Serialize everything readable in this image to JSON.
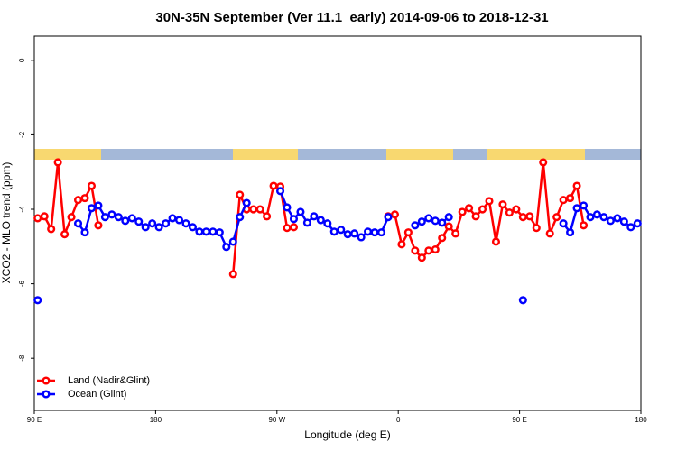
{
  "chart_data": {
    "type": "line",
    "title": "30N-35N September (Ver 11.1_early)   2014-09-06 to 2018-12-31",
    "xlabel": "Longitude (deg E)",
    "ylabel": "XCO2 - MLO trend (ppm)",
    "xlim": [
      90,
      540
    ],
    "ylim": [
      -9.4,
      0.65
    ],
    "xticks": [
      {
        "value": 90,
        "label": "90 E"
      },
      {
        "value": 180,
        "label": "180"
      },
      {
        "value": 270,
        "label": "90 W"
      },
      {
        "value": 360,
        "label": "0"
      },
      {
        "value": 450,
        "label": "90 E"
      },
      {
        "value": 540,
        "label": "180"
      }
    ],
    "yticks": [
      0,
      -2,
      -4,
      -6,
      -8
    ],
    "legend": "bottom-left",
    "series": [
      {
        "name": "Land (Nadir&Glint)",
        "color": "#ff0000",
        "x": [
          92.5,
          97.5,
          102.5,
          107.5,
          112.5,
          117.5,
          122.5,
          127.5,
          132.5,
          137.5,
          142.5,
          237.5,
          242.5,
          247.5,
          252.5,
          257.5,
          262.5,
          267.5,
          272.5,
          277.5,
          282.5,
          287.5,
          352.5,
          357.5,
          362.5,
          367.5,
          372.5,
          377.5,
          382.5,
          387.5,
          392.5,
          397.5,
          402.5,
          407.5,
          412.5,
          417.5,
          422.5,
          427.5,
          432.5,
          437.5,
          442.5,
          447.5,
          452.5,
          457.5,
          462.5,
          467.5,
          472.5,
          477.5,
          482.5,
          487.5,
          492.5,
          497.5
        ],
        "values": [
          -4.24,
          -4.19,
          -4.53,
          -2.74,
          -4.67,
          -4.21,
          -3.75,
          -3.7,
          -3.37,
          -4.43,
          null,
          -5.74,
          -3.61,
          -4.0,
          -4.0,
          -4.0,
          -4.19,
          -3.37,
          -3.39,
          -4.5,
          -4.48,
          null,
          -4.19,
          -4.14,
          -4.94,
          -4.62,
          -5.11,
          -5.3,
          -5.11,
          -5.08,
          -4.77,
          -4.46,
          -4.65,
          -4.07,
          -3.97,
          -4.19,
          -4.0,
          -3.78,
          -4.87,
          -3.87,
          -4.09,
          -4.0,
          -4.21,
          -4.19,
          -4.5,
          -2.74,
          -4.65,
          -4.21,
          -3.75,
          -3.7,
          -3.37,
          -4.43
        ]
      },
      {
        "name": "Ocean (Glint)",
        "color": "#0000ff",
        "x": [
          92.5,
          97.5,
          122.5,
          127.5,
          132.5,
          137.5,
          142.5,
          147.5,
          152.5,
          157.5,
          162.5,
          167.5,
          172.5,
          177.5,
          182.5,
          187.5,
          192.5,
          197.5,
          202.5,
          207.5,
          212.5,
          217.5,
          222.5,
          227.5,
          232.5,
          237.5,
          242.5,
          247.5,
          252.5,
          272.5,
          277.5,
          282.5,
          287.5,
          292.5,
          297.5,
          302.5,
          307.5,
          312.5,
          317.5,
          322.5,
          327.5,
          332.5,
          337.5,
          342.5,
          347.5,
          352.5,
          357.5,
          372.5,
          377.5,
          382.5,
          387.5,
          392.5,
          397.5,
          402.5,
          452.5,
          457.5,
          482.5,
          487.5,
          492.5,
          497.5,
          502.5,
          507.5,
          512.5,
          517.5,
          522.5,
          527.5,
          532.5,
          537.5
        ],
        "values": [
          -6.44,
          null,
          -4.38,
          -4.62,
          -3.97,
          -3.9,
          -4.21,
          -4.14,
          -4.21,
          -4.31,
          -4.24,
          -4.33,
          -4.48,
          -4.38,
          -4.48,
          -4.38,
          -4.24,
          -4.29,
          -4.38,
          -4.48,
          -4.6,
          -4.6,
          -4.6,
          -4.62,
          -5.01,
          -4.87,
          -4.21,
          -3.83,
          null,
          -3.51,
          -3.95,
          -4.26,
          -4.07,
          -4.36,
          -4.19,
          -4.29,
          -4.38,
          -4.6,
          -4.55,
          -4.67,
          -4.65,
          -4.75,
          -4.6,
          -4.62,
          -4.62,
          -4.21,
          null,
          -4.43,
          -4.33,
          -4.24,
          -4.31,
          -4.36,
          -4.21,
          null,
          -6.44,
          null,
          -4.38,
          -4.62,
          -3.97,
          -3.9,
          -4.21,
          -4.14,
          -4.21,
          -4.31,
          -4.24,
          -4.33,
          -4.48,
          -4.38
        ]
      }
    ]
  }
}
